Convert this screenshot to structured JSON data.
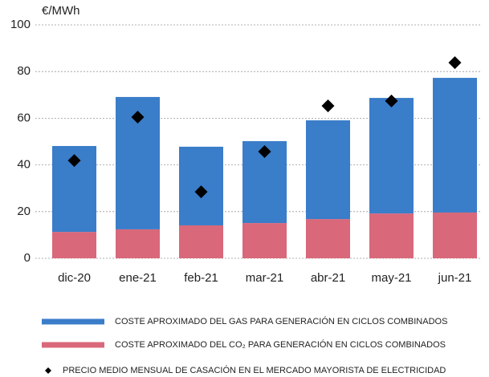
{
  "chart_data": {
    "type": "bar",
    "stacked": true,
    "y_label": "€/MWh",
    "categories": [
      "dic-20",
      "ene-21",
      "feb-21",
      "mar-21",
      "abr-21",
      "may-21",
      "jun-21"
    ],
    "series": [
      {
        "name": "COSTE APROXIMADO DEL CO₂ PARA GENERACIÓN EN CICLOS COMBINADOS",
        "color": "#d9687a",
        "values": [
          11.3,
          12.4,
          14.1,
          15.1,
          16.8,
          19.2,
          19.6
        ]
      },
      {
        "name": "COSTE APROXIMADO DEL GAS PARA GENERACIÓN EN CICLOS COMBINADOS",
        "color": "#3a7dc9",
        "values": [
          36.8,
          56.7,
          33.7,
          35.1,
          42.3,
          49.5,
          57.7
        ]
      },
      {
        "name": "PRECIO MEDIO MENSUAL DE CASACIÓN EN EL MERCADO MAYORISTA DE ELECTRICIDAD",
        "color": "#000000",
        "type": "scatter",
        "marker": "diamond",
        "values": [
          41.9,
          60.5,
          28.5,
          45.7,
          65.3,
          67.4,
          83.8
        ]
      }
    ],
    "legend_order": [
      1,
      0,
      2
    ],
    "ylim": [
      0,
      100
    ],
    "yticks": [
      0,
      20,
      40,
      60,
      80,
      100
    ],
    "grid": true
  }
}
